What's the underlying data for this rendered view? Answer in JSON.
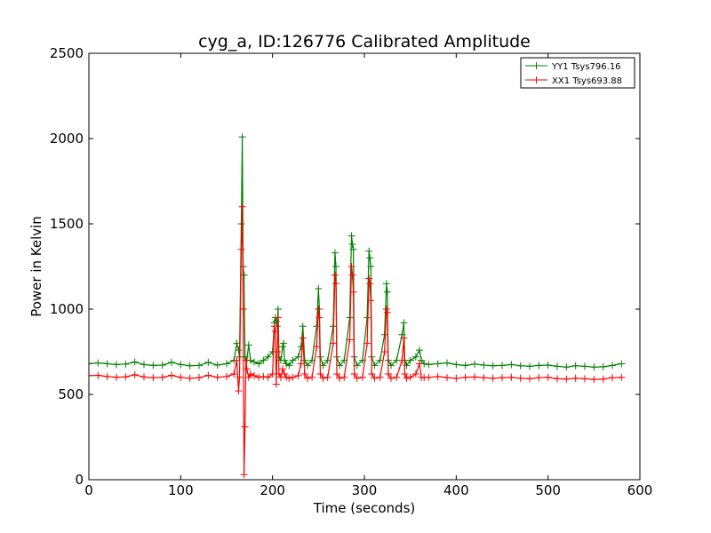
{
  "chart_data": {
    "type": "line",
    "title": "cyg_a, ID:126776 Calibrated Amplitude",
    "xlabel": "Time (seconds)",
    "ylabel": "Power in Kelvin",
    "xlim": [
      0,
      600
    ],
    "ylim": [
      0,
      2500
    ],
    "x_ticks": [
      "0",
      "100",
      "200",
      "300",
      "400",
      "500",
      "600"
    ],
    "y_ticks": [
      "0",
      "500",
      "1000",
      "1500",
      "2000",
      "2500"
    ],
    "grid": false,
    "legend_position": "top-right",
    "marker": "plus",
    "series": [
      {
        "name": "YY1 Tsys796.16",
        "color": "#008000",
        "x": [
          0,
          10,
          20,
          30,
          40,
          50,
          60,
          70,
          80,
          90,
          100,
          110,
          120,
          130,
          140,
          150,
          158,
          161,
          163,
          164,
          166,
          167,
          168,
          169,
          170,
          172,
          174,
          176,
          180,
          185,
          190,
          195,
          200,
          202,
          203,
          204,
          205,
          206,
          207,
          209,
          211,
          212,
          213,
          215,
          218,
          222,
          228,
          231,
          233,
          235,
          238,
          243,
          248,
          250,
          251,
          252,
          255,
          260,
          266,
          268,
          269,
          270,
          273,
          278,
          284,
          286,
          287,
          288,
          289,
          292,
          298,
          303,
          305,
          306,
          307,
          308,
          311,
          317,
          322,
          324,
          325,
          326,
          329,
          335,
          341,
          343,
          344,
          346,
          350,
          356,
          360,
          362,
          365,
          370,
          380,
          390,
          400,
          410,
          420,
          430,
          440,
          450,
          460,
          470,
          480,
          490,
          500,
          510,
          520,
          530,
          540,
          550,
          560,
          570,
          580
        ],
        "values": [
          680,
          685,
          680,
          675,
          678,
          690,
          675,
          670,
          672,
          688,
          675,
          668,
          670,
          688,
          672,
          680,
          700,
          800,
          760,
          720,
          1500,
          2010,
          1250,
          1200,
          720,
          700,
          790,
          700,
          690,
          680,
          700,
          720,
          750,
          920,
          950,
          930,
          900,
          1000,
          720,
          700,
          780,
          800,
          700,
          680,
          670,
          700,
          720,
          780,
          900,
          700,
          670,
          700,
          900,
          1120,
          1000,
          720,
          670,
          700,
          900,
          1330,
          1250,
          720,
          670,
          700,
          950,
          1430,
          1380,
          1350,
          720,
          670,
          700,
          950,
          1340,
          1300,
          1250,
          720,
          670,
          700,
          850,
          1150,
          1100,
          700,
          670,
          700,
          850,
          920,
          700,
          670,
          700,
          720,
          760,
          700,
          680,
          675,
          680,
          685,
          675,
          670,
          678,
          672,
          668,
          670,
          675,
          668,
          665,
          670,
          672,
          665,
          660,
          668,
          665,
          660,
          662,
          670,
          680
        ]
      },
      {
        "name": "XX1 Tsys693.88",
        "color": "#ff0000",
        "x": [
          0,
          10,
          20,
          30,
          40,
          50,
          60,
          70,
          80,
          90,
          100,
          110,
          120,
          130,
          140,
          150,
          158,
          161,
          163,
          164,
          166,
          167,
          168,
          169,
          170,
          171,
          172,
          174,
          176,
          180,
          185,
          190,
          195,
          200,
          202,
          203,
          204,
          205,
          206,
          207,
          209,
          211,
          213,
          215,
          218,
          222,
          228,
          231,
          233,
          235,
          238,
          243,
          248,
          250,
          251,
          252,
          255,
          260,
          266,
          268,
          269,
          270,
          273,
          278,
          284,
          286,
          287,
          288,
          289,
          292,
          298,
          303,
          305,
          306,
          307,
          308,
          311,
          317,
          322,
          324,
          325,
          326,
          329,
          335,
          341,
          343,
          344,
          346,
          350,
          356,
          360,
          362,
          365,
          370,
          380,
          390,
          400,
          410,
          420,
          430,
          440,
          450,
          460,
          470,
          480,
          490,
          500,
          510,
          520,
          530,
          540,
          550,
          560,
          570,
          580
        ],
        "values": [
          610,
          612,
          605,
          600,
          603,
          615,
          602,
          598,
          600,
          612,
          600,
          595,
          598,
          612,
          600,
          605,
          620,
          700,
          520,
          600,
          1350,
          1600,
          1000,
          30,
          310,
          700,
          650,
          600,
          620,
          610,
          600,
          605,
          600,
          620,
          900,
          870,
          560,
          750,
          950,
          620,
          600,
          650,
          620,
          600,
          595,
          600,
          610,
          680,
          830,
          620,
          595,
          600,
          780,
          1000,
          950,
          620,
          595,
          600,
          800,
          1200,
          1150,
          620,
          595,
          600,
          820,
          1250,
          1200,
          1100,
          620,
          595,
          600,
          800,
          1180,
          1150,
          1050,
          620,
          595,
          600,
          750,
          1000,
          980,
          620,
          595,
          600,
          700,
          830,
          620,
          595,
          600,
          620,
          680,
          600,
          598,
          600,
          605,
          598,
          595,
          600,
          602,
          598,
          595,
          598,
          600,
          595,
          592,
          598,
          600,
          592,
          590,
          595,
          592,
          588,
          590,
          598,
          600
        ]
      }
    ]
  }
}
